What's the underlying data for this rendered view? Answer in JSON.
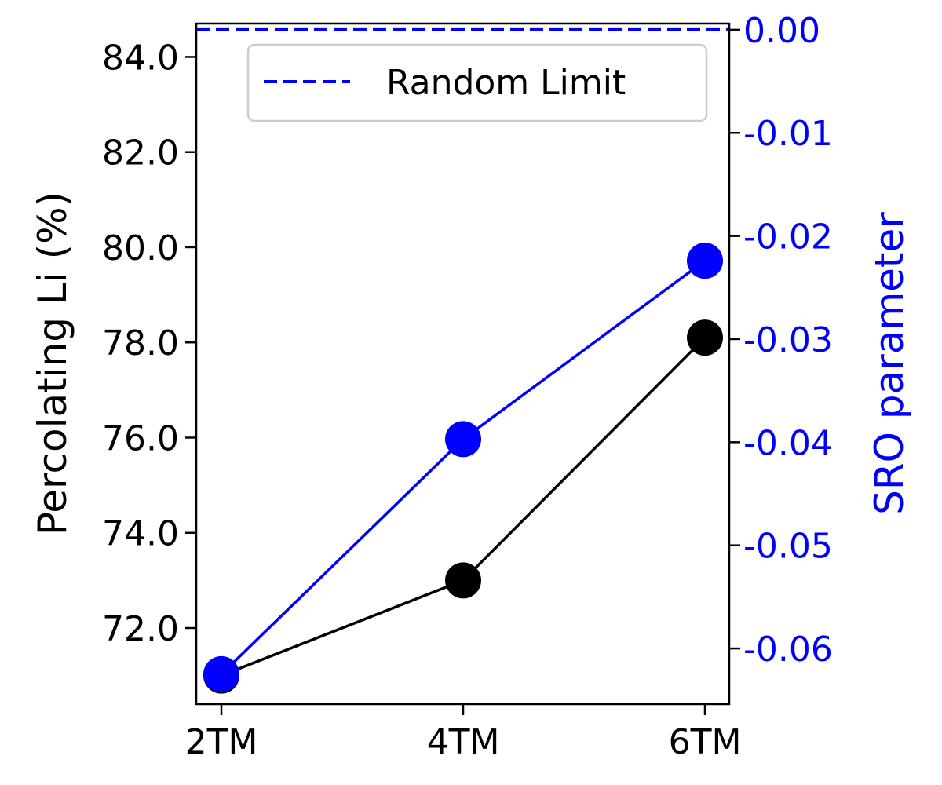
{
  "chart_data": {
    "type": "line",
    "categories": [
      "2TM",
      "4TM",
      "6TM"
    ],
    "left_axis": {
      "label": "Percolating Li (%)",
      "ylim": [
        70.4,
        84.7
      ],
      "ticks": [
        72.0,
        74.0,
        76.0,
        78.0,
        80.0,
        82.0,
        84.0
      ],
      "tick_labels": [
        "72.0",
        "74.0",
        "76.0",
        "78.0",
        "80.0",
        "82.0",
        "84.0"
      ],
      "color": "#000000"
    },
    "right_axis": {
      "label": "SRO parameter",
      "ylim": [
        -0.0654,
        0.0006
      ],
      "ticks": [
        -0.06,
        -0.05,
        -0.04,
        -0.03,
        -0.02,
        -0.01,
        0.0
      ],
      "tick_labels": [
        "-0.06",
        "-0.05",
        "-0.04",
        "-0.03",
        "-0.02",
        "-0.01",
        "0.00"
      ],
      "color": "#0000ff"
    },
    "series": [
      {
        "axis": "left",
        "color": "#000000",
        "values": [
          71.0,
          73.0,
          78.1
        ]
      },
      {
        "axis": "right",
        "color": "#0000ff",
        "values": [
          -0.0625,
          -0.0397,
          -0.0224
        ]
      }
    ],
    "reference_line": {
      "axis": "right",
      "value": 0.0,
      "style": "dashed",
      "color": "#0000ff",
      "legend_label": "Random Limit"
    },
    "legend": {
      "placement": "top-right",
      "entries": [
        "Random Limit"
      ]
    },
    "grid": false
  }
}
